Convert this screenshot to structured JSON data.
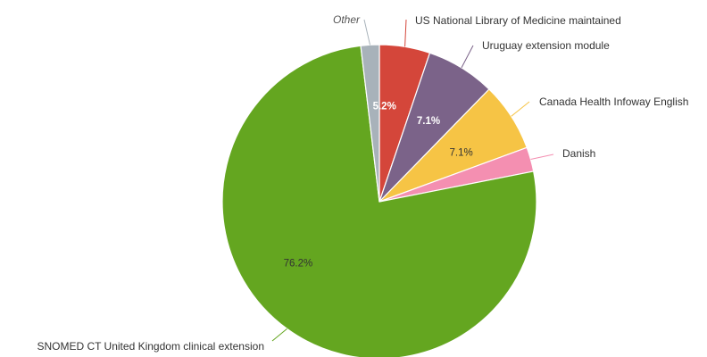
{
  "chart_data": {
    "type": "pie",
    "title": "",
    "start_angle_deg": 0,
    "direction": "clockwise",
    "slices": [
      {
        "label": "US National Library of Medicine maintained",
        "value": 5.2,
        "pct_label": "5.2%",
        "color": "#d4463a",
        "pct_color": "#ffffff",
        "label_italic": false
      },
      {
        "label": "Uruguay extension module",
        "value": 7.1,
        "pct_label": "7.1%",
        "color": "#7b6389",
        "pct_color": "#ffffff",
        "label_italic": false
      },
      {
        "label": "Canada Health Infoway English",
        "value": 7.1,
        "pct_label": "7.1%",
        "color": "#f6c445",
        "pct_color": "#333333",
        "label_italic": false
      },
      {
        "label": "Danish",
        "value": 2.5,
        "pct_label": "",
        "color": "#f48fb1",
        "pct_color": "#333333",
        "label_italic": false
      },
      {
        "label": "SNOMED CT United Kingdom clinical extension",
        "value": 76.2,
        "pct_label": "76.2%",
        "color": "#64a620",
        "pct_color": "#333333",
        "label_italic": false
      },
      {
        "label": "Other",
        "value": 1.9,
        "pct_label": "",
        "color": "#a8b2ba",
        "pct_color": "#333333",
        "label_italic": true
      }
    ]
  }
}
